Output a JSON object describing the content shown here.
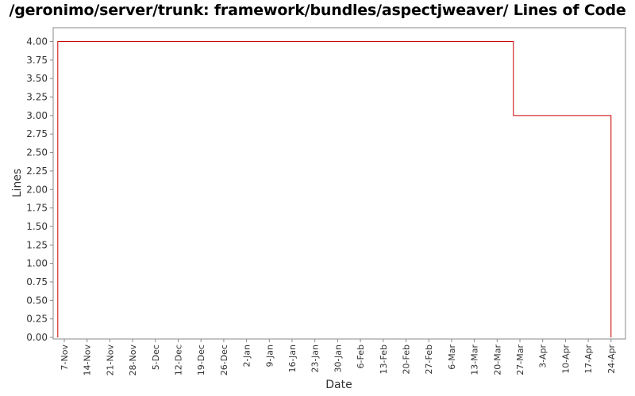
{
  "chart_data": {
    "type": "line",
    "title": "/geronimo/server/trunk: framework/bundles/aspectjweaver/ Lines of Code",
    "xlabel": "Date",
    "ylabel": "Lines",
    "step": true,
    "ylim": [
      0,
      4.1
    ],
    "yticks": [
      "0.00",
      "0.25",
      "0.50",
      "0.75",
      "1.00",
      "1.25",
      "1.50",
      "1.75",
      "2.00",
      "2.25",
      "2.50",
      "2.75",
      "3.00",
      "3.25",
      "3.50",
      "3.75",
      "4.00"
    ],
    "xticks": [
      "7-Nov",
      "14-Nov",
      "21-Nov",
      "28-Nov",
      "5-Dec",
      "12-Dec",
      "19-Dec",
      "26-Dec",
      "2-Jan",
      "9-Jan",
      "16-Jan",
      "23-Jan",
      "30-Jan",
      "6-Feb",
      "13-Feb",
      "20-Feb",
      "27-Feb",
      "6-Mar",
      "13-Mar",
      "20-Mar",
      "27-Mar",
      "3-Apr",
      "10-Apr",
      "17-Apr",
      "24-Apr"
    ],
    "series": [
      {
        "color": "#cc0000",
        "points": [
          {
            "x": "5-Nov",
            "y": 0
          },
          {
            "x": "5-Nov",
            "y": 4
          },
          {
            "x": "25-Mar",
            "y": 4
          },
          {
            "x": "25-Mar",
            "y": 3
          },
          {
            "x": "24-Apr",
            "y": 3
          },
          {
            "x": "24-Apr",
            "y": 0
          }
        ]
      }
    ],
    "grid": false,
    "legend": "none"
  }
}
